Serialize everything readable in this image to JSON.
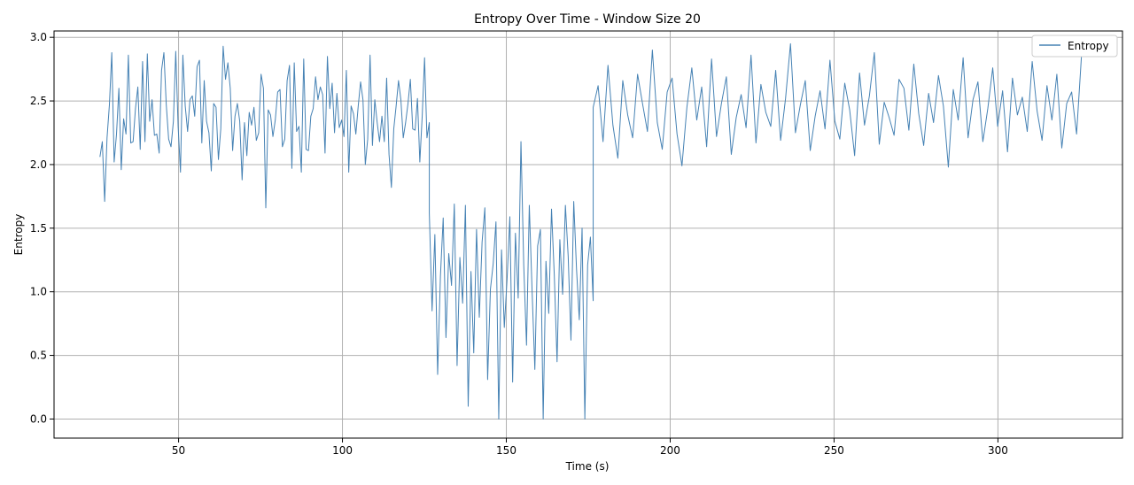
{
  "chart_data": {
    "type": "line",
    "title": "Entropy Over Time - Window Size 20",
    "xlabel": "Time (s)",
    "ylabel": "Entropy",
    "xlim": [
      12,
      338
    ],
    "ylim": [
      -0.15,
      3.05
    ],
    "x_ticks": [
      50,
      100,
      150,
      200,
      250,
      300
    ],
    "x_tick_labels": [
      "50",
      "100",
      "150",
      "200",
      "250",
      "300"
    ],
    "y_ticks": [
      0.0,
      0.5,
      1.0,
      1.5,
      2.0,
      2.5,
      3.0
    ],
    "y_tick_labels": [
      "0.0",
      "0.5",
      "1.0",
      "1.5",
      "2.0",
      "2.5",
      "3.0"
    ],
    "grid": true,
    "legend_position": "top-right",
    "series": [
      {
        "name": "Entropy",
        "color": "#4682b4",
        "t_start": 26,
        "t_step": 0.1,
        "segments": [
          {
            "from": 26,
            "to": 126.5,
            "regime": "high",
            "values": [
              2.06,
              2.18,
              1.71,
              2.21,
              2.47,
              2.88,
              2.02,
              2.24,
              2.6,
              1.96,
              2.36,
              2.24,
              2.86,
              2.17,
              2.18,
              2.44,
              2.61,
              2.12,
              2.81,
              2.18,
              2.87,
              2.34,
              2.51,
              2.23,
              2.24,
              2.09,
              2.74,
              2.88,
              2.47,
              2.2,
              2.14,
              2.34,
              2.89,
              2.3,
              1.94,
              2.86,
              2.46,
              2.26,
              2.51,
              2.54,
              2.38,
              2.77,
              2.82,
              2.17,
              2.66,
              2.34,
              2.25,
              1.95,
              2.48,
              2.45,
              2.04,
              2.28,
              2.93,
              2.67,
              2.8,
              2.6,
              2.11,
              2.38,
              2.48,
              2.34,
              1.88,
              2.33,
              2.07,
              2.41,
              2.31,
              2.45,
              2.19,
              2.25,
              2.71,
              2.6,
              1.66,
              2.43,
              2.39,
              2.22,
              2.35,
              2.57,
              2.59,
              2.14,
              2.2,
              2.66,
              2.78,
              1.97,
              2.8,
              2.26,
              2.3,
              1.94,
              2.83,
              2.12,
              2.11,
              2.38,
              2.44,
              2.69,
              2.51,
              2.61,
              2.55,
              2.09,
              2.85,
              2.44,
              2.64,
              2.25,
              2.56,
              2.29,
              2.35,
              2.22,
              2.74,
              1.94,
              2.46,
              2.4,
              2.24,
              2.46,
              2.65,
              2.51,
              2.0,
              2.2,
              2.86,
              2.15,
              2.51,
              2.33,
              2.18,
              2.38,
              2.18,
              2.68,
              2.08,
              1.82,
              2.28,
              2.46,
              2.66,
              2.51,
              2.21,
              2.33,
              2.48,
              2.67,
              2.28,
              2.27,
              2.52,
              2.02,
              2.38,
              2.84,
              2.21,
              2.33
            ]
          },
          {
            "from": 126.5,
            "to": 176.5,
            "regime": "low",
            "values": [
              1.62,
              0.85,
              1.45,
              0.35,
              1.12,
              1.58,
              0.64,
              1.3,
              1.05,
              1.69,
              0.42,
              1.27,
              0.91,
              1.68,
              0.1,
              1.16,
              0.52,
              1.49,
              0.8,
              1.39,
              1.66,
              0.31,
              1.02,
              1.22,
              1.55,
              0.0,
              1.33,
              0.72,
              1.1,
              1.59,
              0.29,
              1.46,
              0.95,
              2.18,
              1.21,
              0.58,
              1.68,
              1.01,
              0.39,
              1.36,
              1.49,
              0.0,
              1.24,
              0.83,
              1.65,
              1.13,
              0.45,
              1.41,
              0.98,
              1.68,
              1.28,
              0.62,
              1.71,
              1.18,
              0.78,
              1.5,
              0.0,
              1.21,
              1.43,
              0.93
            ]
          },
          {
            "from": 176.5,
            "to": 325.5,
            "regime": "high",
            "values": [
              2.45,
              2.62,
              2.18,
              2.78,
              2.31,
              2.05,
              2.66,
              2.39,
              2.21,
              2.71,
              2.48,
              2.26,
              2.9,
              2.33,
              2.12,
              2.57,
              2.68,
              2.24,
              1.99,
              2.45,
              2.76,
              2.35,
              2.61,
              2.14,
              2.83,
              2.22,
              2.48,
              2.69,
              2.08,
              2.37,
              2.55,
              2.29,
              2.86,
              2.17,
              2.63,
              2.41,
              2.3,
              2.74,
              2.19,
              2.52,
              2.95,
              2.25,
              2.47,
              2.66,
              2.11,
              2.38,
              2.58,
              2.28,
              2.82,
              2.34,
              2.2,
              2.64,
              2.43,
              2.07,
              2.72,
              2.31,
              2.54,
              2.88,
              2.16,
              2.49,
              2.37,
              2.23,
              2.67,
              2.6,
              2.27,
              2.79,
              2.4,
              2.15,
              2.56,
              2.33,
              2.7,
              2.46,
              1.98,
              2.59,
              2.35,
              2.84,
              2.21,
              2.51,
              2.65,
              2.18,
              2.44,
              2.76,
              2.3,
              2.58,
              2.1,
              2.68,
              2.39,
              2.53,
              2.26,
              2.81,
              2.42,
              2.19,
              2.62,
              2.35,
              2.71,
              2.13,
              2.48,
              2.57,
              2.24,
              2.86
            ]
          }
        ]
      }
    ]
  }
}
